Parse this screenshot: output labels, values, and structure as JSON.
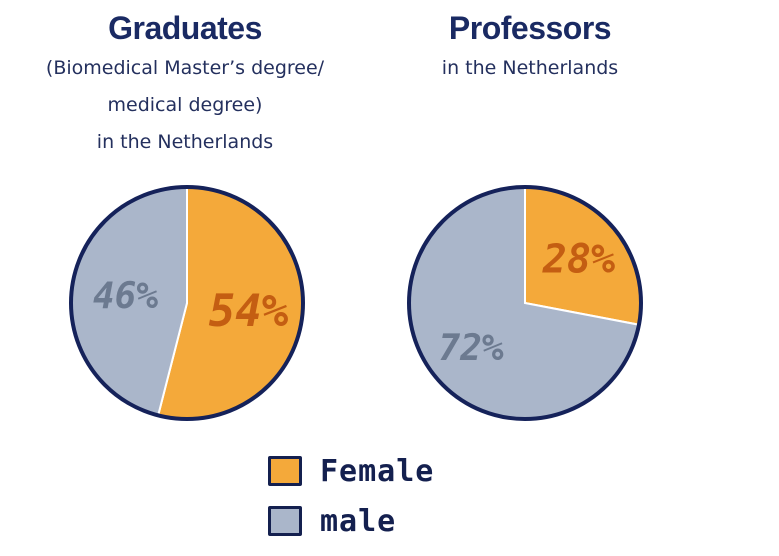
{
  "chart_data": [
    {
      "type": "pie",
      "title": "Graduates",
      "subtitle": "(Biomedical Master’s degree/\nmedical degree)\nin the Netherlands",
      "series": [
        {
          "name": "Female",
          "value": 54,
          "label": "54%",
          "color": "#f4a93a"
        },
        {
          "name": "male",
          "value": 46,
          "label": "46%",
          "color": "#aab6ca"
        }
      ]
    },
    {
      "type": "pie",
      "title": "Professors",
      "subtitle": "in the Netherlands",
      "series": [
        {
          "name": "Female",
          "value": 28,
          "label": "28%",
          "color": "#f4a93a"
        },
        {
          "name": "male",
          "value": 72,
          "label": "72%",
          "color": "#aab6ca"
        }
      ]
    }
  ],
  "legend": {
    "items": [
      {
        "label": "Female",
        "color": "#f4a93a"
      },
      {
        "label": "male",
        "color": "#aab6ca"
      }
    ]
  },
  "colors": {
    "outline": "#15225a",
    "female_text": "#c45e12",
    "male_text": "#6c7a90"
  }
}
